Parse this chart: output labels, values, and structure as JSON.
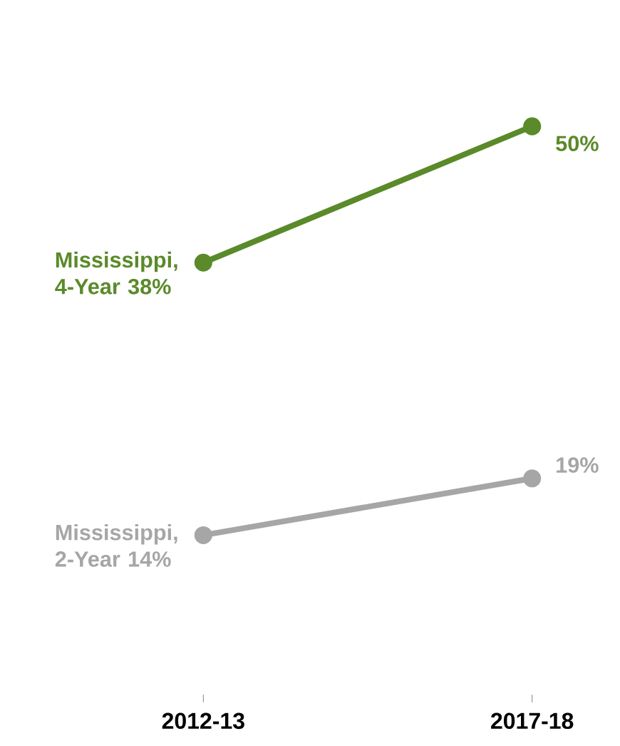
{
  "chart_data": {
    "type": "line",
    "categories": [
      "2012-13",
      "2017-18"
    ],
    "series": [
      {
        "name": "Mississippi, 4-Year",
        "color": "#5a8a29",
        "values": [
          38,
          50
        ],
        "value_labels": [
          "38%",
          "50%"
        ]
      },
      {
        "name": "Mississippi, 2-Year",
        "color": "#a6a6a6",
        "values": [
          14,
          19
        ],
        "value_labels": [
          "14%",
          "19%"
        ]
      }
    ],
    "marker": "circle",
    "legend": false,
    "grid": false
  }
}
